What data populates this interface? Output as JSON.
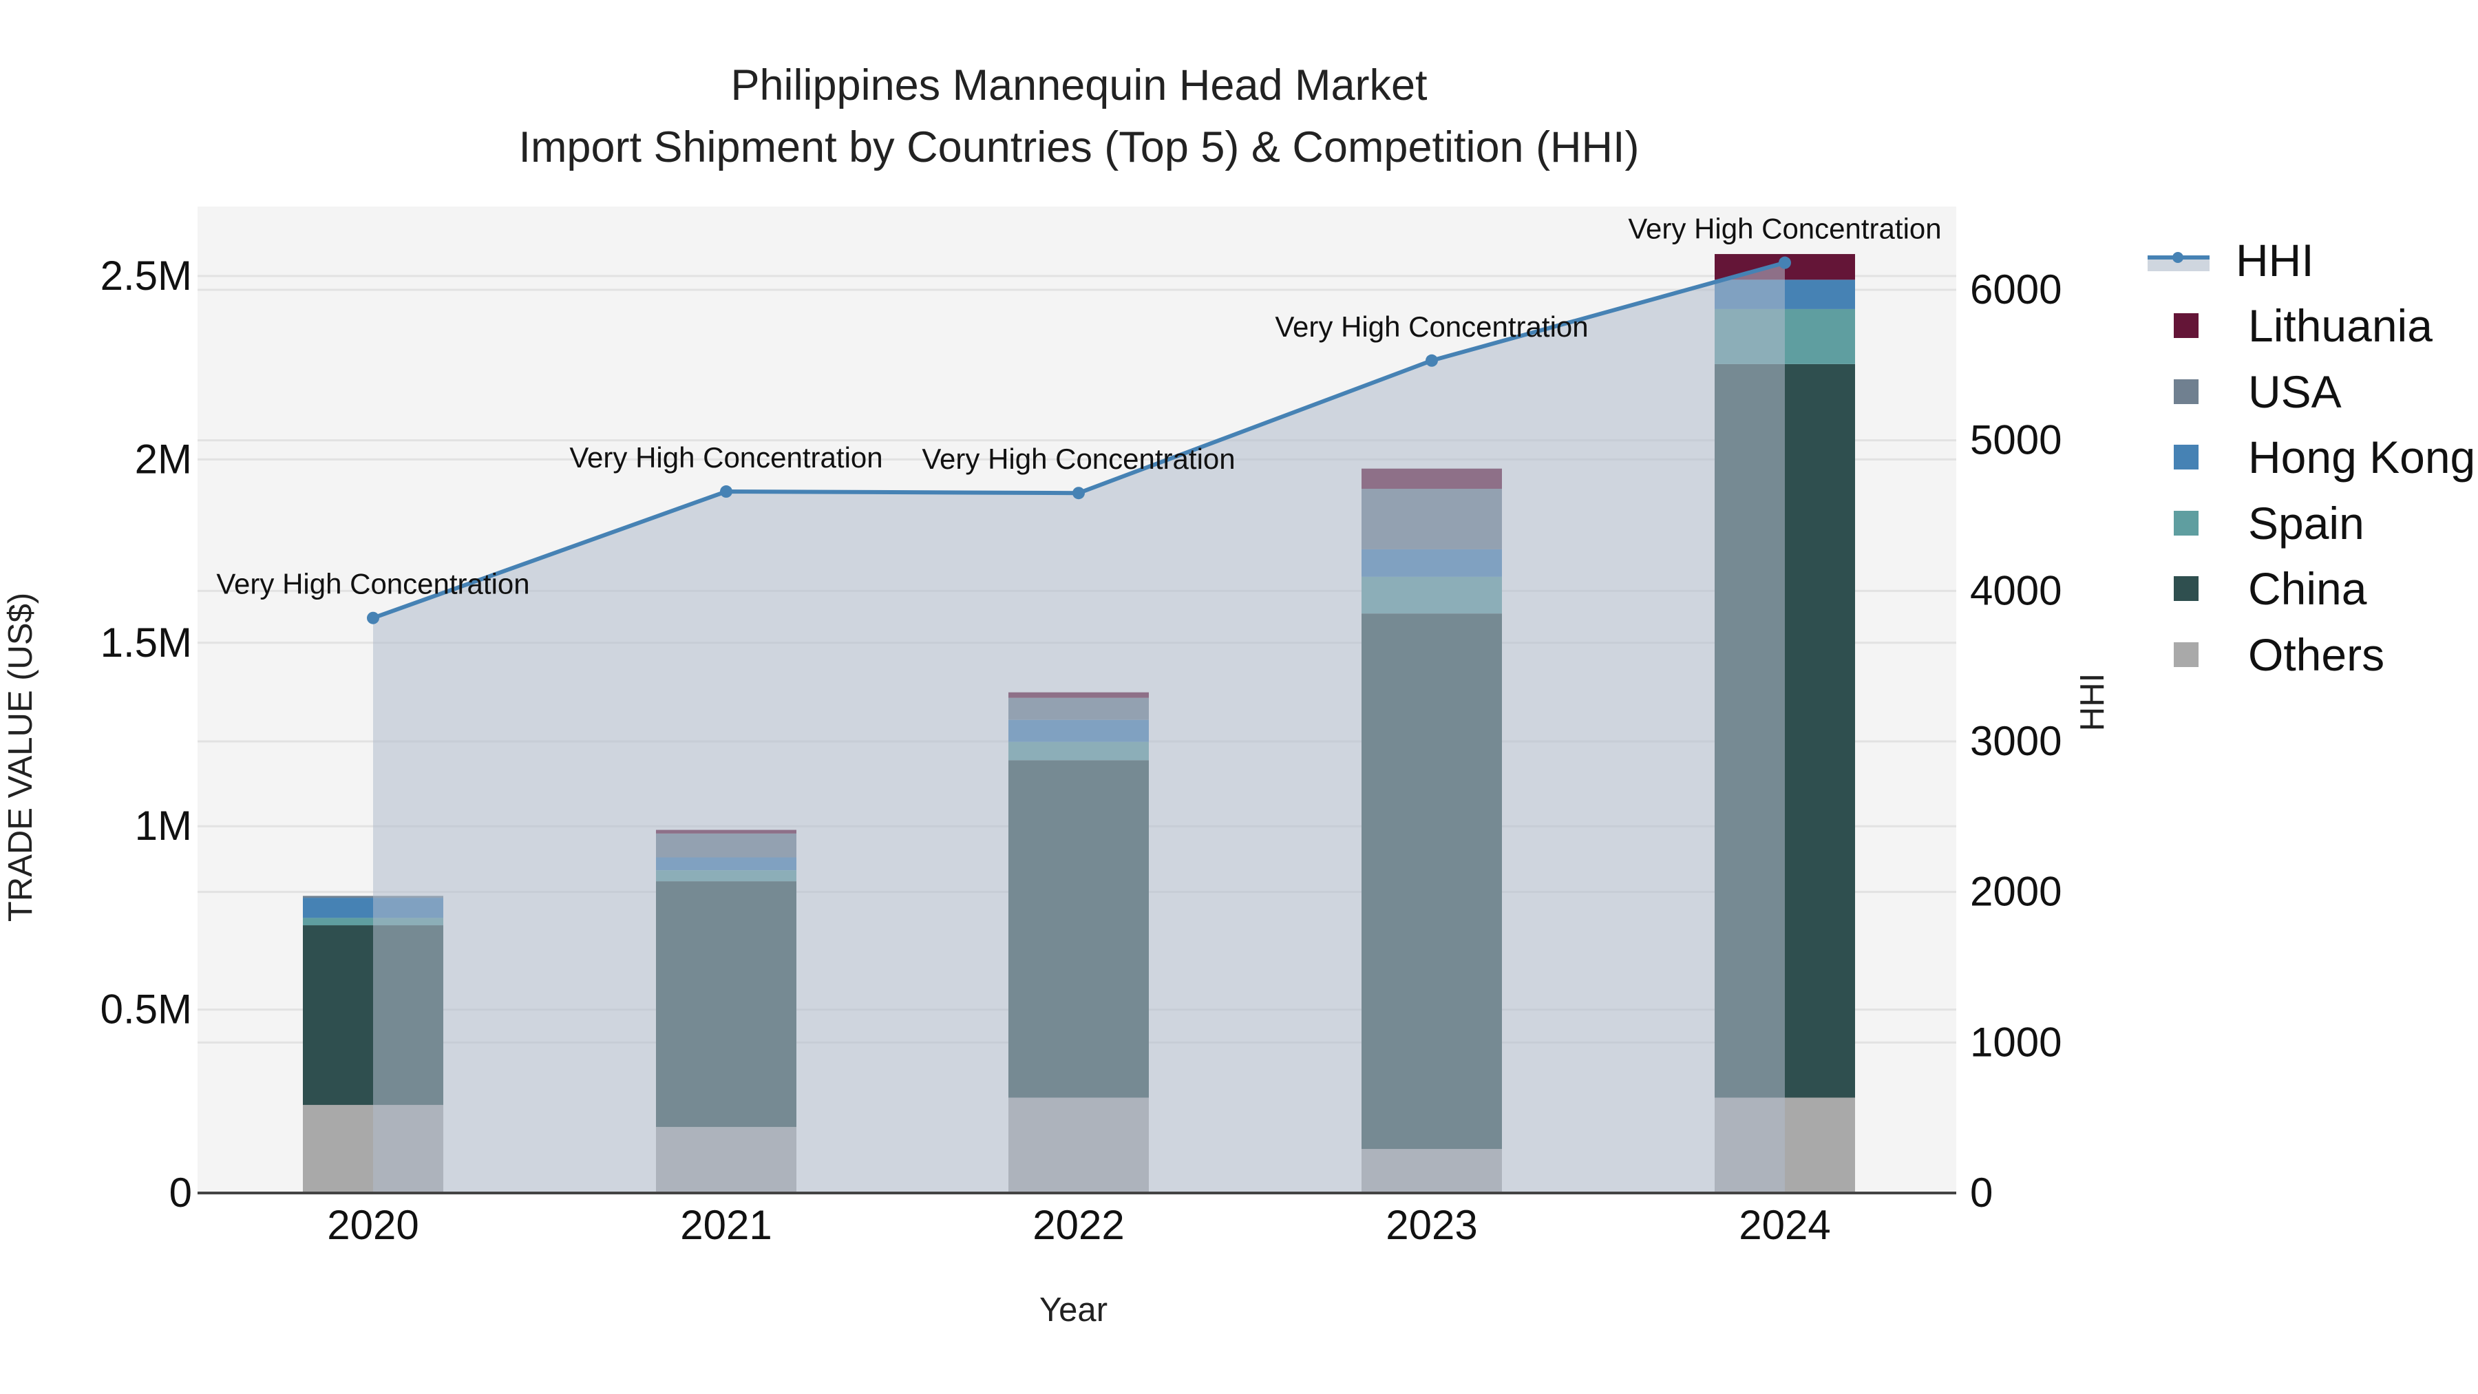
{
  "title": {
    "line1": "Philippines Mannequin Head Market",
    "line2": "Import Shipment by Countries (Top 5) & Competition (HHI)"
  },
  "axes": {
    "x_label": "Year",
    "y_left_label": "TRADE VALUE (US$)",
    "y_right_label": "HHI",
    "y_left_ticks": [
      "0",
      "0.5M",
      "1M",
      "1.5M",
      "2M",
      "2.5M"
    ],
    "y_right_ticks": [
      "0",
      "1000",
      "2000",
      "3000",
      "4000",
      "5000",
      "6000"
    ],
    "x_ticks": [
      "2020",
      "2021",
      "2022",
      "2023",
      "2024"
    ]
  },
  "legend": [
    {
      "name": "HHI",
      "type": "line",
      "color": "#4682b4"
    },
    {
      "name": "Lithuania",
      "type": "bar",
      "color": "#641537"
    },
    {
      "name": "USA",
      "type": "bar",
      "color": "#708090"
    },
    {
      "name": "Hong Kong",
      "type": "bar",
      "color": "#4682b4"
    },
    {
      "name": "Spain",
      "type": "bar",
      "color": "#5f9ea0"
    },
    {
      "name": "China",
      "type": "bar",
      "color": "#2f4f4f"
    },
    {
      "name": "Others",
      "type": "bar",
      "color": "#a9a9a9"
    }
  ],
  "annotations": [
    {
      "year": "2020",
      "text": "Very High Concentration"
    },
    {
      "year": "2021",
      "text": "Very High Concentration"
    },
    {
      "year": "2022",
      "text": "Very High Concentration"
    },
    {
      "year": "2023",
      "text": "Very High Concentration"
    },
    {
      "year": "2024",
      "text": "Very High Concentration"
    }
  ],
  "chart_data": {
    "type": "bar",
    "stacked": true,
    "title": "Philippines Mannequin Head Market — Import Shipment by Countries (Top 5) & Competition (HHI)",
    "xlabel": "Year",
    "ylabel": "TRADE VALUE (US$)",
    "y2label": "HHI",
    "categories": [
      "2020",
      "2021",
      "2022",
      "2023",
      "2024"
    ],
    "ylim": [
      0,
      2700000
    ],
    "y2lim": [
      0,
      6550
    ],
    "grid": true,
    "legend_position": "right",
    "series": [
      {
        "name": "Others",
        "color": "#a9a9a9",
        "values": [
          240000,
          180000,
          260000,
          120000,
          260000
        ]
      },
      {
        "name": "China",
        "color": "#2f4f4f",
        "values": [
          490000,
          670000,
          920000,
          1460000,
          2000000
        ]
      },
      {
        "name": "Spain",
        "color": "#5f9ea0",
        "values": [
          20000,
          30000,
          50000,
          100000,
          150000
        ]
      },
      {
        "name": "Hong Kong",
        "color": "#4682b4",
        "values": [
          55000,
          35000,
          60000,
          75000,
          80000
        ]
      },
      {
        "name": "USA",
        "color": "#708090",
        "values": [
          5000,
          65000,
          60000,
          165000,
          0
        ]
      },
      {
        "name": "Lithuania",
        "color": "#641537",
        "values": [
          0,
          10000,
          15000,
          55000,
          70000
        ]
      }
    ],
    "line_series": {
      "name": "HHI",
      "axis": "right",
      "color": "#4682b4",
      "fill": "tozeroy",
      "values": [
        3820,
        4660,
        4650,
        5530,
        6180
      ],
      "labels": [
        "Very High Concentration",
        "Very High Concentration",
        "Very High Concentration",
        "Very High Concentration",
        "Very High Concentration"
      ]
    }
  }
}
